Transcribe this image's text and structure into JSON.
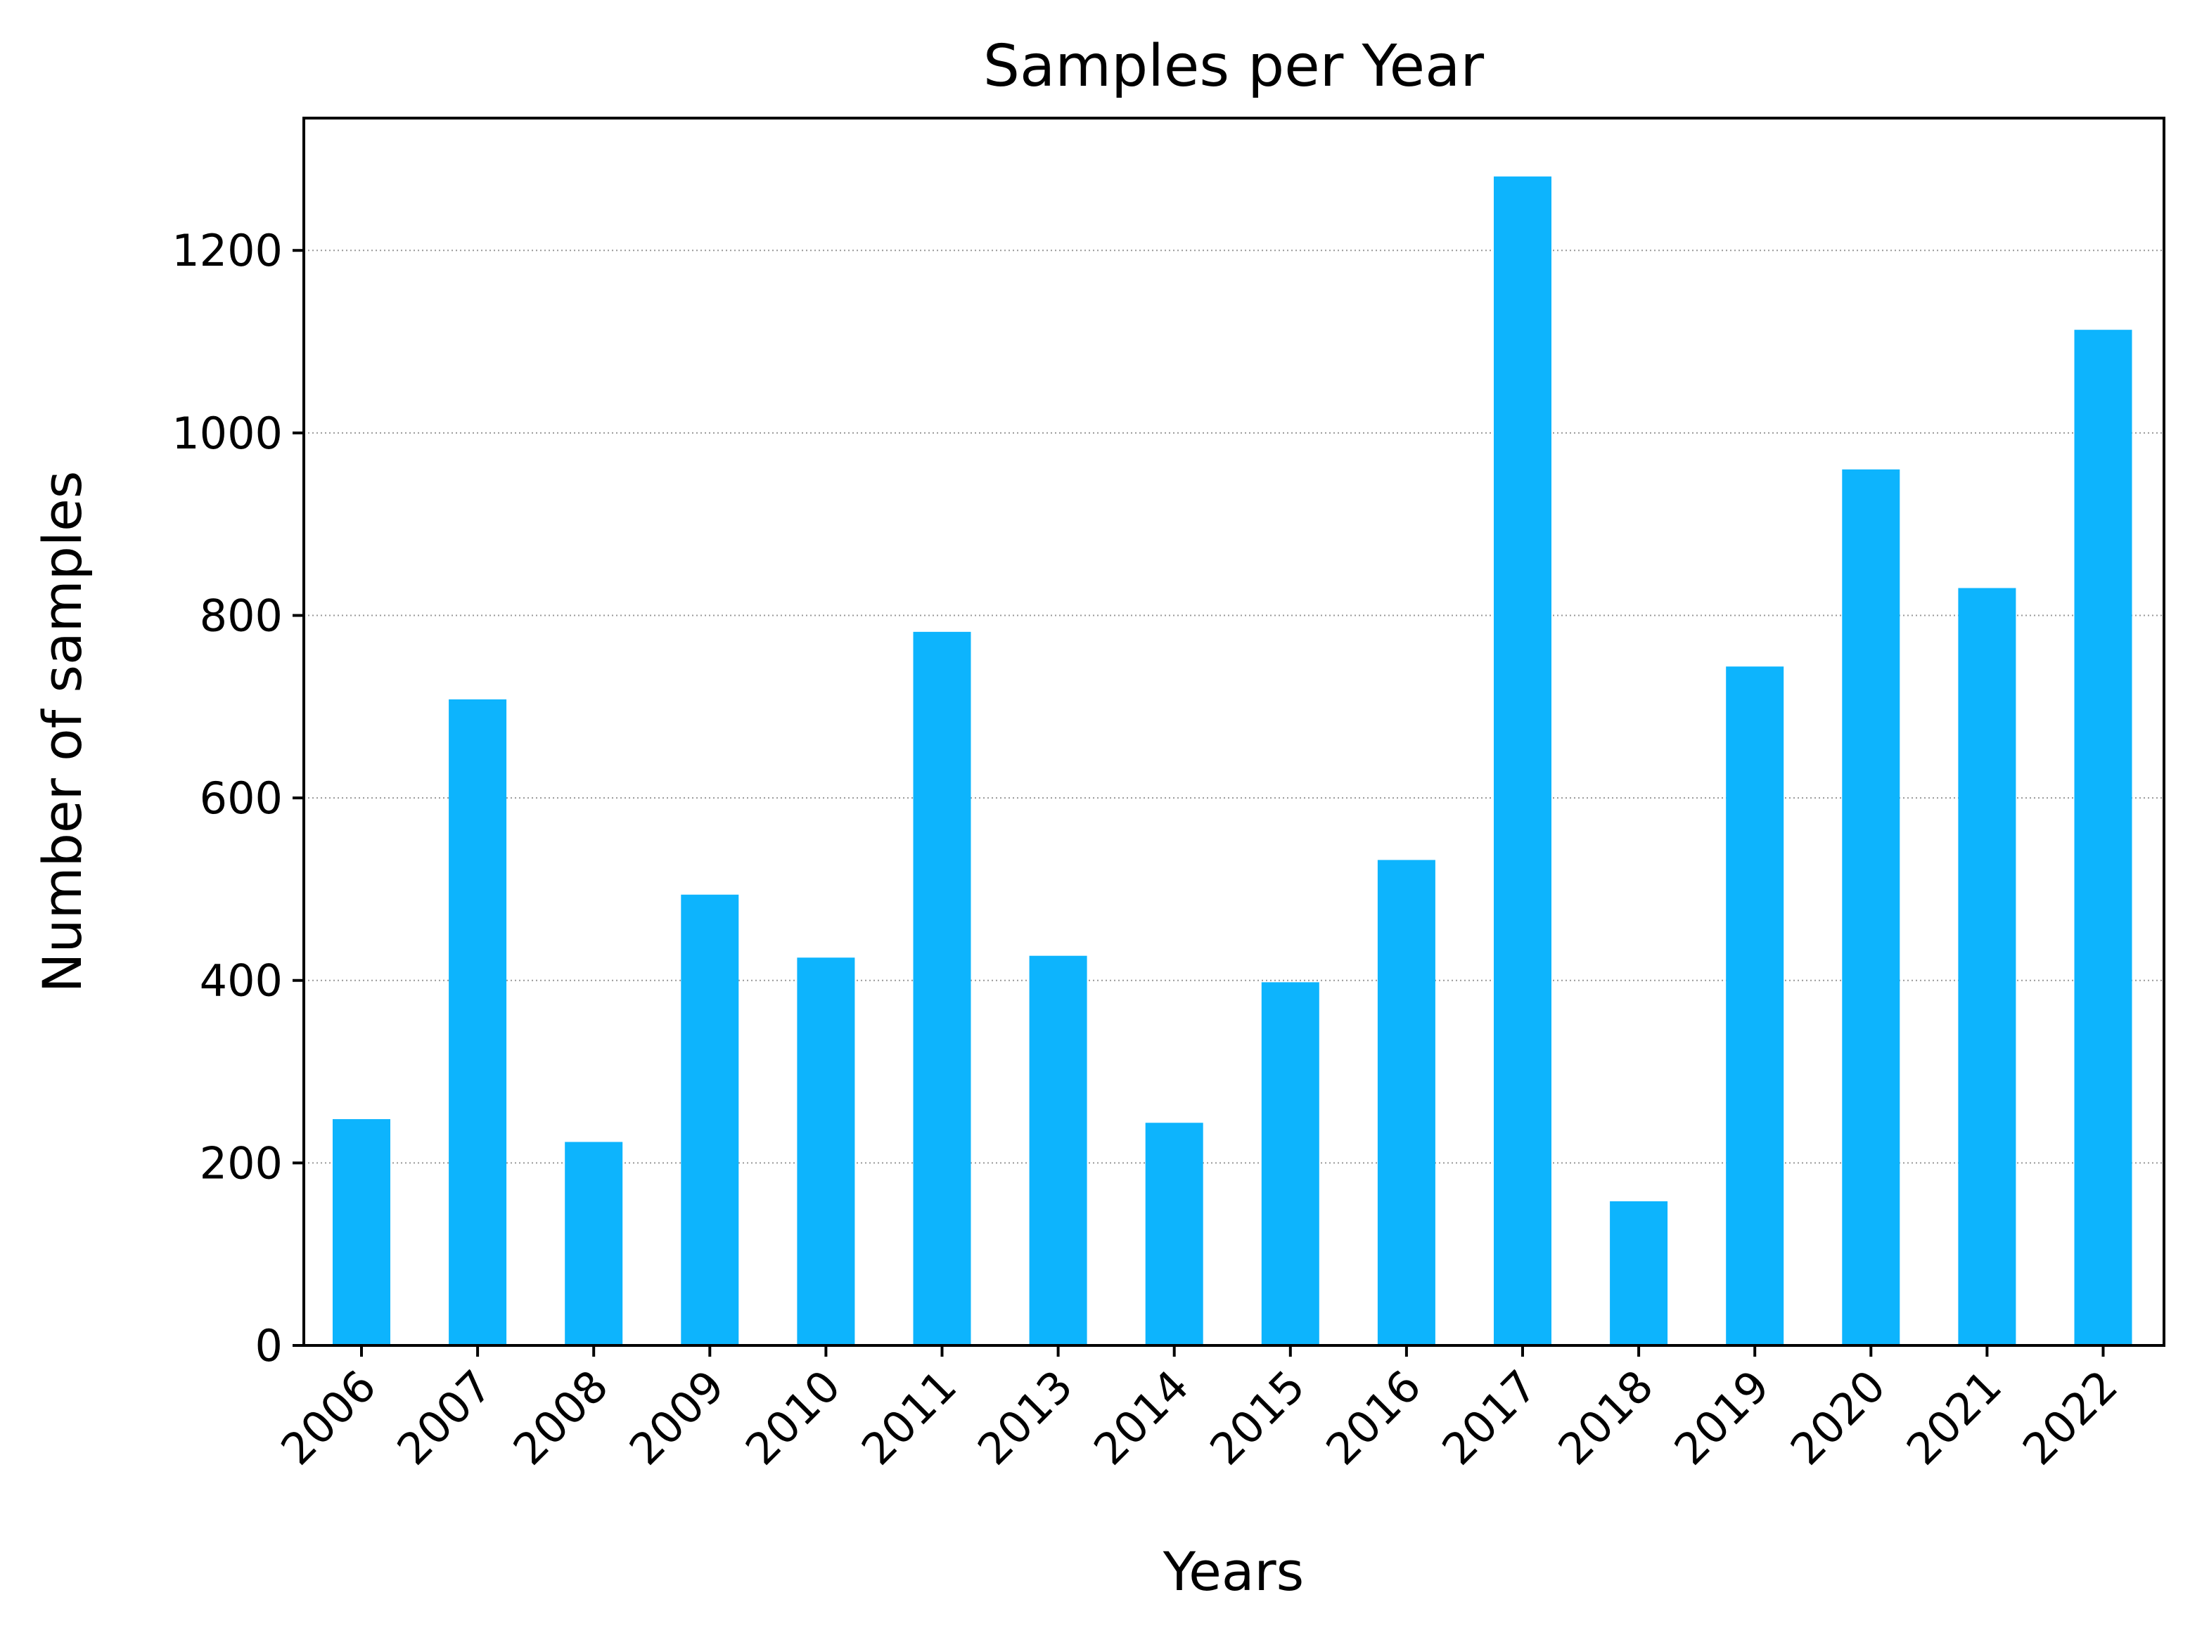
{
  "chart_data": {
    "type": "bar",
    "title": "Samples per Year",
    "xlabel": "Years",
    "ylabel": "Number of samples",
    "categories": [
      "2006",
      "2007",
      "2008",
      "2009",
      "2010",
      "2011",
      "2013",
      "2014",
      "2015",
      "2016",
      "2017",
      "2018",
      "2019",
      "2020",
      "2021",
      "2022"
    ],
    "values": [
      248,
      708,
      223,
      494,
      425,
      782,
      427,
      244,
      398,
      532,
      1281,
      158,
      744,
      960,
      830,
      1113
    ],
    "ylim": [
      0,
      1345
    ],
    "yticks": [
      0,
      200,
      400,
      600,
      800,
      1000,
      1200
    ],
    "ytick_labels": [
      "0",
      "200",
      "400",
      "600",
      "800",
      "1000",
      "1200"
    ],
    "grid": "y dotted",
    "legend": "none",
    "colors": {
      "bar": "#0db4fd",
      "grid": "#999999",
      "axis": "#000000"
    }
  }
}
